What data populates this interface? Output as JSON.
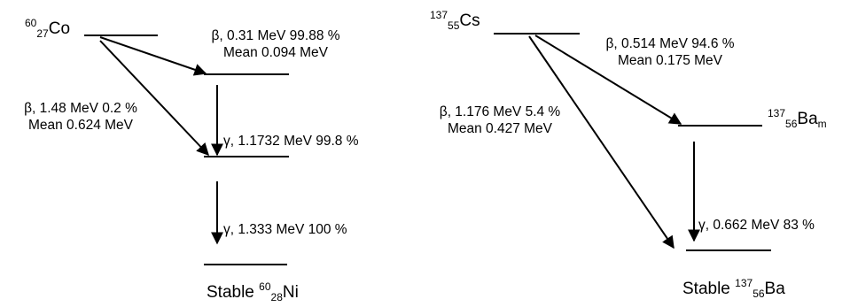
{
  "co60": {
    "parent": {
      "mass": "60",
      "atomic": "27",
      "symbol": "Co"
    },
    "beta1": {
      "line1": "β, 0.31 MeV 99.88 %",
      "line2": "Mean 0.094 MeV"
    },
    "beta2": {
      "line1": "β, 1.48 MeV 0.2 %",
      "line2": "Mean 0.624 MeV"
    },
    "gamma1": "γ, 1.1732 MeV 99.8 %",
    "gamma2": "γ, 1.333 MeV 100 %",
    "daughter": {
      "prefix": "Stable",
      "mass": "60",
      "atomic": "28",
      "symbol": "Ni"
    }
  },
  "cs137": {
    "parent": {
      "mass": "137",
      "atomic": "55",
      "symbol": "Cs"
    },
    "beta1": {
      "line1": "β, 0.514 MeV 94.6 %",
      "line2": "Mean 0.175 MeV"
    },
    "beta2": {
      "line1": "β, 1.176 MeV 5.4 %",
      "line2": "Mean 0.427 MeV"
    },
    "metastable": {
      "mass": "137",
      "atomic": "56",
      "symbol": "Ba",
      "sub": "m"
    },
    "gamma": "γ, 0.662 MeV 83 %",
    "daughter": {
      "prefix": "Stable",
      "mass": "137",
      "atomic": "56",
      "symbol": "Ba"
    }
  }
}
